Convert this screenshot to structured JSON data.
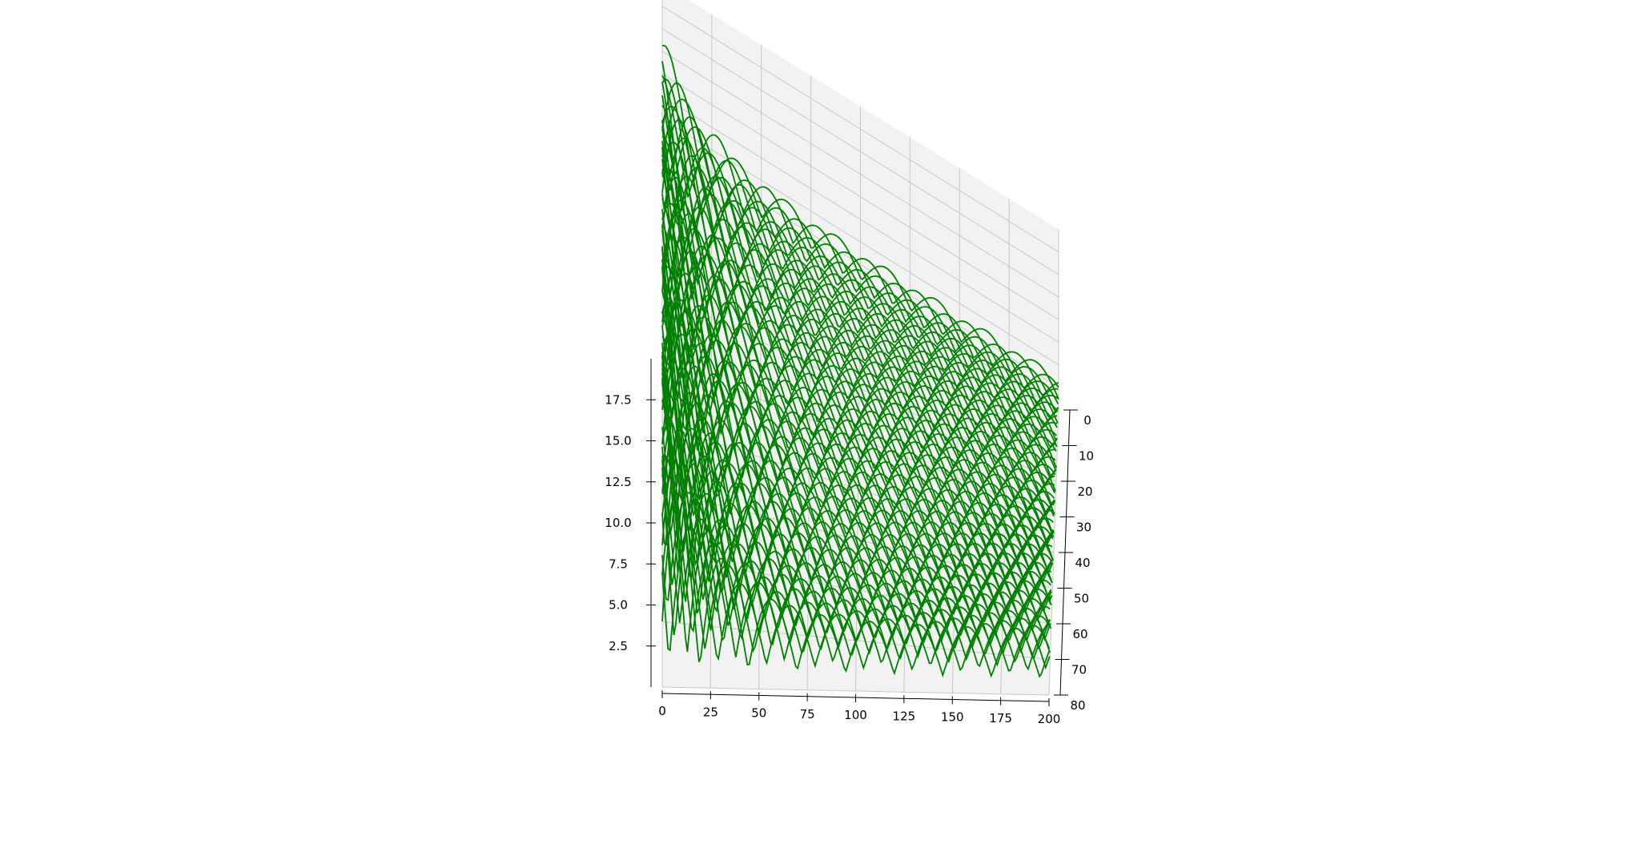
{
  "chart_data": {
    "type": "line",
    "projection": "3d",
    "title": "",
    "xlabel": "",
    "ylabel": "",
    "zlabel": "",
    "series_color": "#008000",
    "pane_color": "#f2f2f2",
    "grid": true,
    "x_ticks": [
      "0",
      "25",
      "50",
      "75",
      "100",
      "125",
      "150",
      "175",
      "200"
    ],
    "y_ticks": [
      "0",
      "10",
      "20",
      "30",
      "40",
      "50",
      "60",
      "70",
      "80"
    ],
    "z_ticks": [
      "2.5",
      "5.0",
      "7.5",
      "10.0",
      "12.5",
      "15.0",
      "17.5"
    ],
    "x_range": [
      0,
      200
    ],
    "y_range": [
      0,
      80
    ],
    "z_range": [
      0,
      20
    ],
    "series_count": 80,
    "samples_per_series": 201,
    "series_formula": "z = |sin(x/8 + phase)| * (3 + 14 * exp(-x/25)) + 0.8",
    "y_positions": [
      0,
      1,
      2,
      3,
      4,
      5,
      6,
      7,
      8,
      9,
      10,
      11,
      12,
      13,
      14,
      15,
      16,
      17,
      18,
      19,
      20,
      21,
      22,
      23,
      24,
      25,
      26,
      27,
      28,
      29,
      30,
      31,
      32,
      33,
      34,
      35,
      36,
      37,
      38,
      39,
      40,
      41,
      42,
      43,
      44,
      45,
      46,
      47,
      48,
      49,
      50,
      51,
      52,
      53,
      54,
      55,
      56,
      57,
      58,
      59,
      60,
      61,
      62,
      63,
      64,
      65,
      66,
      67,
      68,
      69,
      70,
      71,
      72,
      73,
      74,
      75,
      76,
      77,
      78,
      79
    ]
  }
}
